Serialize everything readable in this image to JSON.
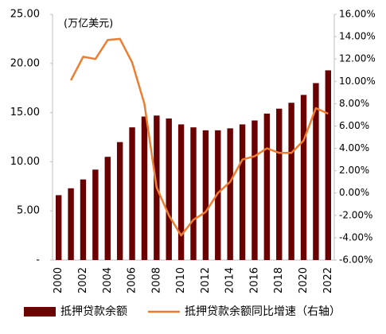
{
  "chart_data": {
    "type": "bar",
    "unit": "(万亿美元)",
    "categories": [
      "2000",
      null,
      "2002",
      null,
      "2004",
      null,
      "2006",
      null,
      "2008",
      null,
      "2010",
      null,
      "2012",
      null,
      "2014",
      null,
      "2016",
      null,
      "2018",
      null,
      "2020",
      null,
      "2022"
    ],
    "series": [
      {
        "name": "抵押贷款余额",
        "type": "bar",
        "color": "#6b0000",
        "values": [
          6.6,
          7.3,
          8.2,
          9.2,
          10.5,
          12.0,
          13.5,
          14.6,
          14.7,
          14.4,
          13.8,
          13.5,
          13.2,
          13.2,
          13.4,
          13.8,
          14.2,
          14.9,
          15.4,
          16.0,
          16.8,
          18.0,
          19.3
        ]
      },
      {
        "name": "抵押贷款余额同比增速（右轴）",
        "type": "line",
        "axis": "y2",
        "color": "#ed7d31",
        "values": [
          null,
          10.1,
          12.2,
          12.0,
          13.7,
          13.8,
          11.7,
          8.0,
          0.5,
          -2.0,
          -3.8,
          -2.4,
          -1.7,
          0.0,
          1.0,
          3.0,
          3.3,
          4.0,
          3.6,
          3.6,
          4.7,
          7.6,
          7.1
        ]
      }
    ],
    "ylim": [
      0,
      25
    ],
    "yticks": [
      {
        "value": 0,
        "label": "-"
      },
      {
        "value": 5,
        "label": "5.00"
      },
      {
        "value": 10,
        "label": "10.00"
      },
      {
        "value": 15,
        "label": "15.00"
      },
      {
        "value": 20,
        "label": "20.00"
      },
      {
        "value": 25,
        "label": "25.00"
      }
    ],
    "y2lim": [
      -6,
      16
    ],
    "y2ticks": [
      {
        "value": -6,
        "label": "-6.00%"
      },
      {
        "value": -4,
        "label": "-4.00%"
      },
      {
        "value": -2,
        "label": "-2.00%"
      },
      {
        "value": 0,
        "label": "0.00%"
      },
      {
        "value": 2,
        "label": "2.00%"
      },
      {
        "value": 4,
        "label": "4.00%"
      },
      {
        "value": 6,
        "label": "6.00%"
      },
      {
        "value": 8,
        "label": "8.00%"
      },
      {
        "value": 10,
        "label": "10.00%"
      },
      {
        "value": 12,
        "label": "12.00%"
      },
      {
        "value": 14,
        "label": "14.00%"
      },
      {
        "value": 16,
        "label": "16.00%"
      }
    ],
    "legend": "bottom"
  }
}
